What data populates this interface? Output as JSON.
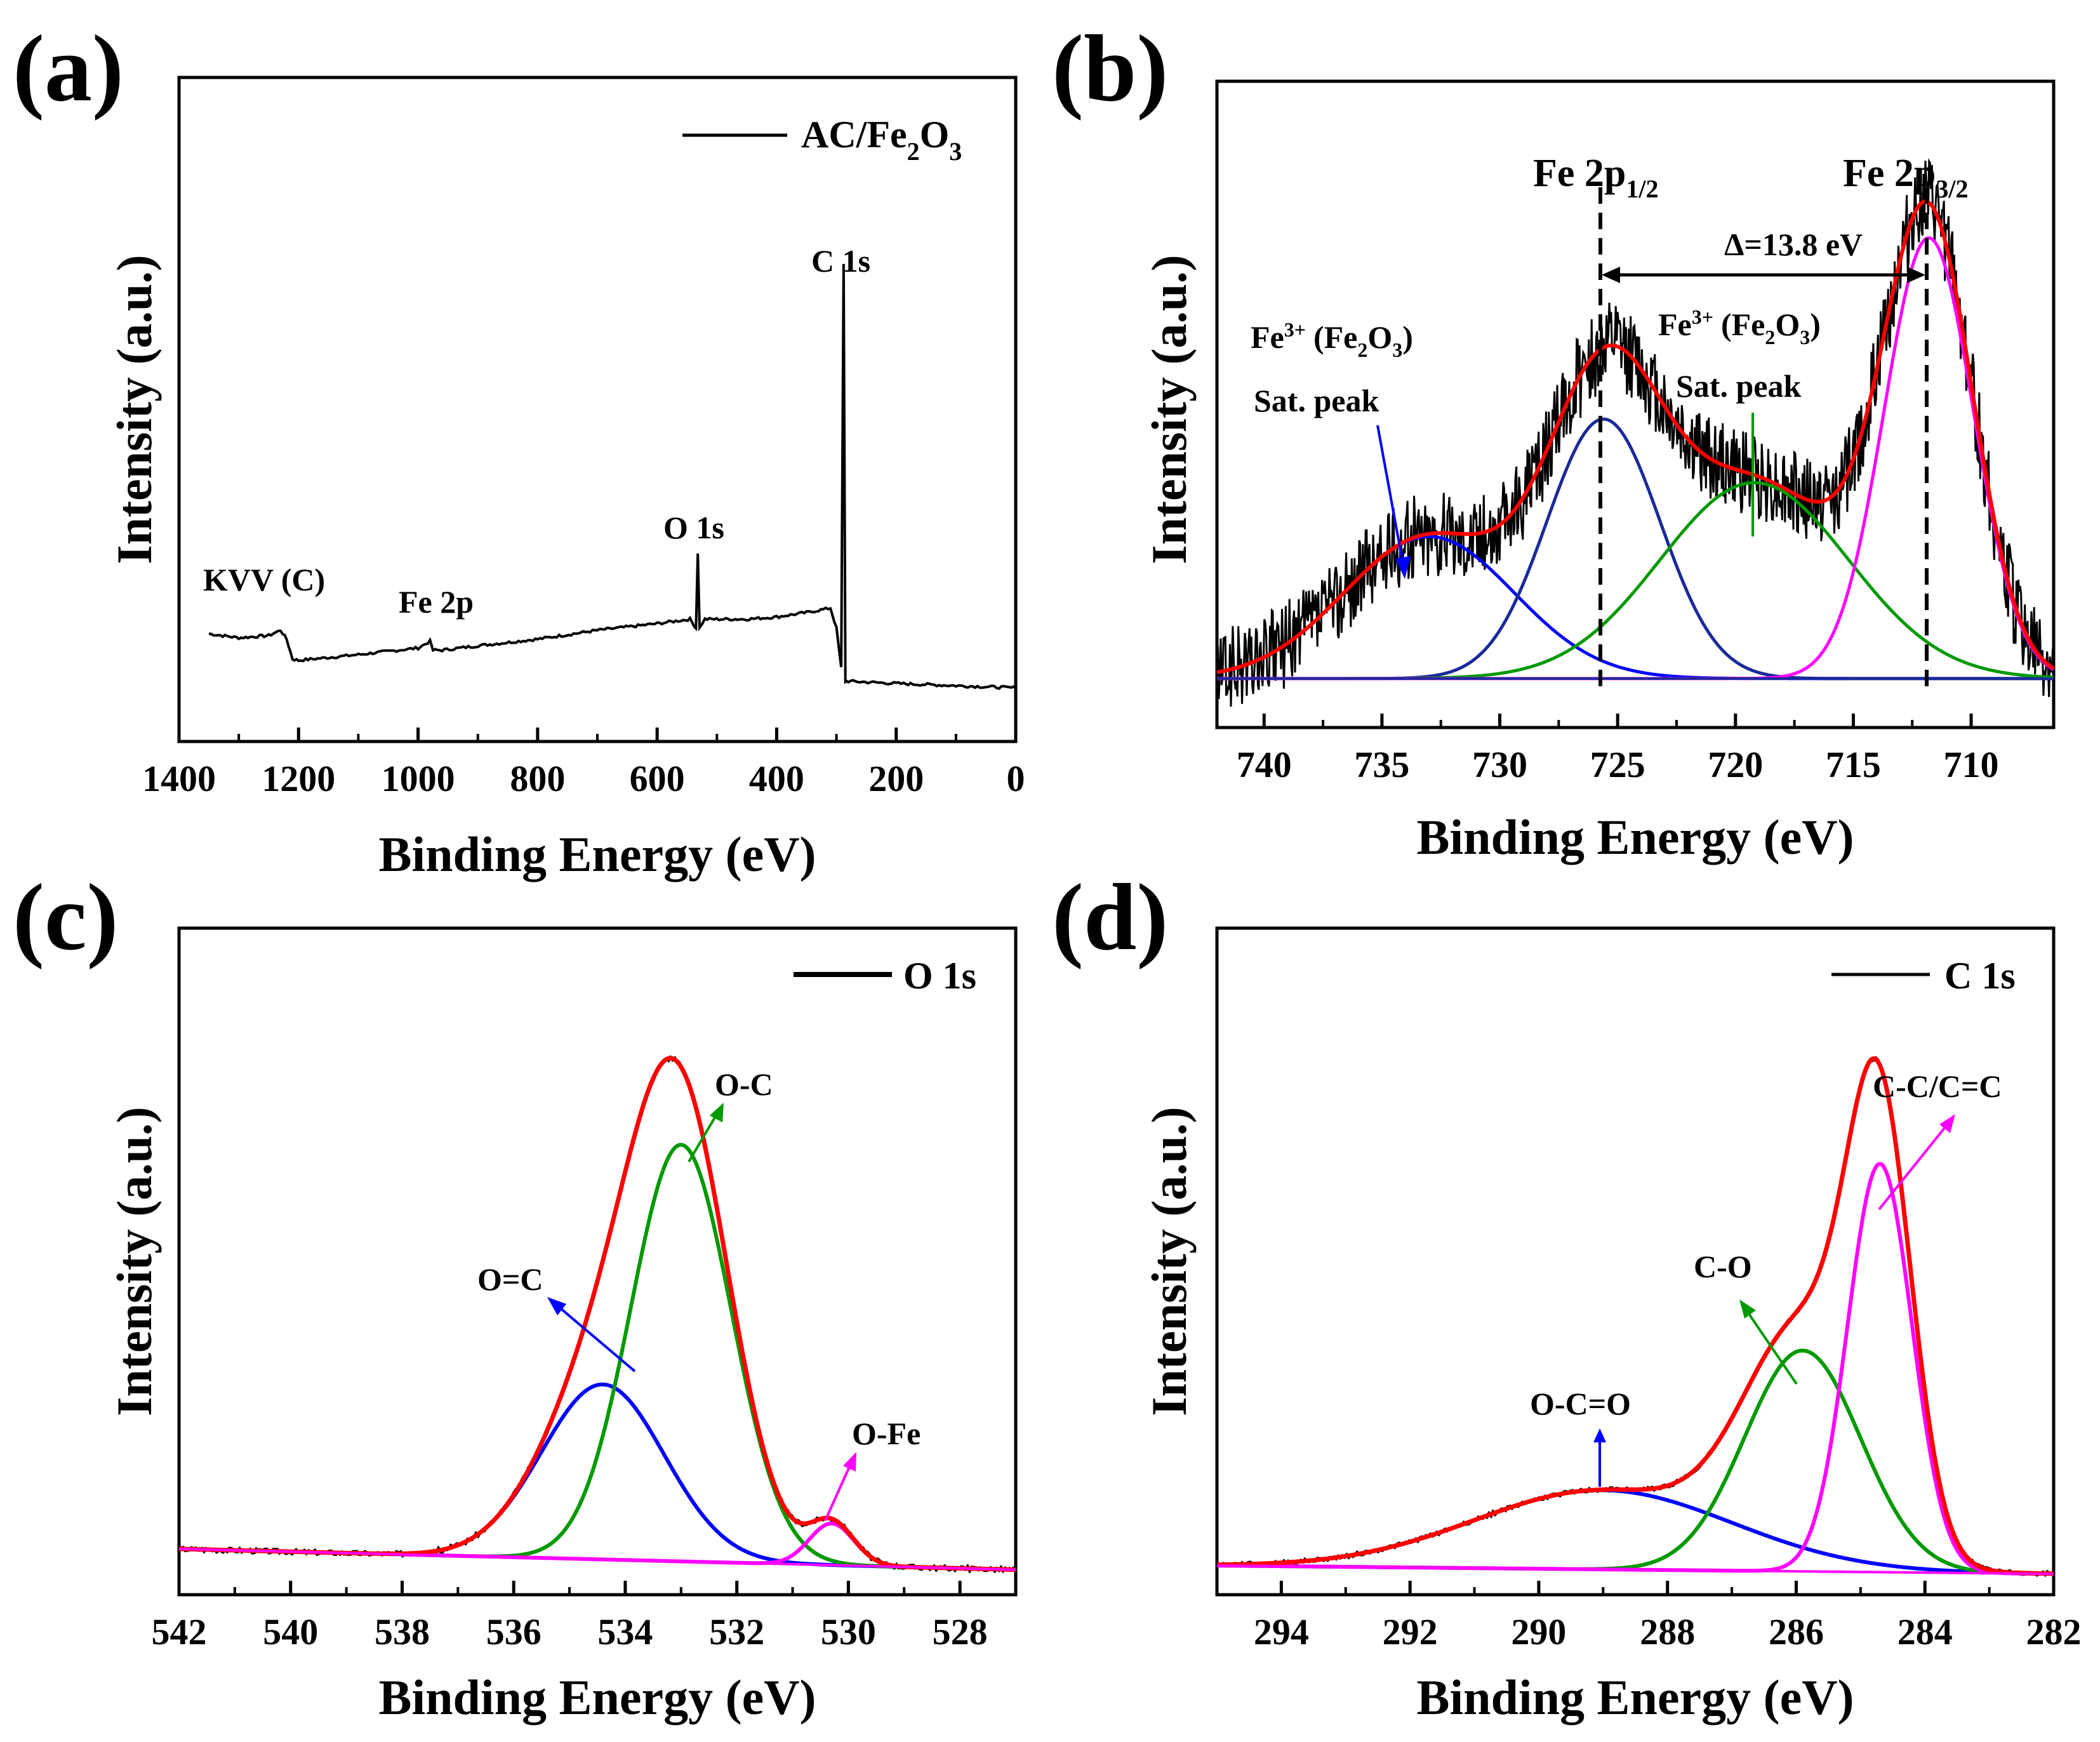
{
  "figure": {
    "panels": [
      {
        "label": "(a)",
        "xlabel": "Binding Energy (eV)",
        "ylabel": "Intensity (a.u.)",
        "legend": "AC/Fe2O3"
      },
      {
        "label": "(b)",
        "xlabel": "Binding Energy (eV)",
        "ylabel": "Intensity (a.u.)",
        "legend": ""
      },
      {
        "label": "(c)",
        "xlabel": "Binding Energy (eV)",
        "ylabel": "Intensity (a.u.)",
        "legend": "O 1s"
      },
      {
        "label": "(d)",
        "xlabel": "Binding Energy (eV)",
        "ylabel": "Intensity (a.u.)",
        "legend": "C 1s"
      }
    ]
  },
  "colors": {
    "raw": "#000000",
    "fit_envelope": "#ff0000",
    "blue": "#0000ff",
    "navy": "#1a2a9a",
    "green": "#009900",
    "magenta": "#ff00ff"
  },
  "chart_data": [
    {
      "panel": "(a)",
      "type": "line",
      "title": "",
      "xlabel": "Binding Energy (eV)",
      "ylabel": "Intensity (a.u.)",
      "xlim": [
        1400,
        0
      ],
      "xticks": [
        1400,
        1200,
        1000,
        800,
        600,
        400,
        200,
        0
      ],
      "ylim": [
        0,
        1
      ],
      "legend": "AC/Fe2O3",
      "series": [
        {
          "name": "AC/Fe2O3",
          "color": "#000000",
          "x": [
            1350,
            1300,
            1250,
            1230,
            1220,
            1210,
            1200,
            1100,
            1000,
            980,
            975,
            960,
            900,
            800,
            700,
            600,
            545,
            535,
            532,
            529,
            525,
            520,
            450,
            400,
            350,
            310,
            300,
            292,
            288,
            285,
            283,
            280,
            200,
            100,
            0
          ],
          "y": [
            0.167,
            0.158,
            0.163,
            0.175,
            0.155,
            0.11,
            0.107,
            0.12,
            0.135,
            0.15,
            0.13,
            0.13,
            0.14,
            0.155,
            0.175,
            0.19,
            0.2,
            0.18,
            0.35,
            0.18,
            0.19,
            0.2,
            0.2,
            0.205,
            0.215,
            0.225,
            0.18,
            0.09,
            1.0,
            0.06,
            0.06,
            0.06,
            0.055,
            0.05,
            0.045
          ]
        }
      ],
      "annotations": [
        {
          "text": "KVV (C)",
          "x": 1180
        },
        {
          "text": "Fe 2p",
          "x": 910
        },
        {
          "text": "O 1s",
          "x": 540
        },
        {
          "text": "C 1s",
          "x": 300
        }
      ]
    },
    {
      "panel": "(b)",
      "type": "line",
      "title": "",
      "xlabel": "Binding Energy (eV)",
      "ylabel": "Intensity (a.u.)",
      "xlim": [
        742,
        706.5
      ],
      "xticks": [
        740,
        735,
        730,
        725,
        720,
        715,
        710
      ],
      "ylim": [
        -0.1,
        1.22
      ],
      "baseline": 0.0,
      "series": [
        {
          "name": "raw",
          "color": "#000000",
          "noisy": true,
          "noise": 0.055
        },
        {
          "name": "Fe3+ (Fe2O3) Sat. peak",
          "color": "#0000ff",
          "center": 733,
          "height": 0.29,
          "width": 3.6
        },
        {
          "name": "Fe 2p1/2",
          "color": "#1a2a9a",
          "center": 725.6,
          "height": 0.53,
          "width": 2.4
        },
        {
          "name": "Fe3+ (Fe2O3) Sat. peak",
          "color": "#009900",
          "center": 719.2,
          "height": 0.4,
          "width": 4.0
        },
        {
          "name": "Fe 2p3/2",
          "color": "#ff00ff",
          "center": 711.8,
          "height": 0.9,
          "width": 1.9
        },
        {
          "name": "envelope",
          "color": "#ff0000",
          "sum_of_components": true
        }
      ],
      "dashed_lines": [
        725.5,
        711.7
      ],
      "delta_arrow": {
        "from": 725.5,
        "to": 711.7,
        "text": "Δ=13.8 eV"
      },
      "annotations": [
        {
          "text": "Fe 2p",
          "sub": "1/2"
        },
        {
          "text": "Fe 2p",
          "sub": "3/2"
        },
        {
          "text": "Fe",
          "sup": "3+",
          "rest": "(Fe2O3)",
          "label2": "Sat. peak",
          "side": "left"
        },
        {
          "text": "Fe",
          "sup": "3+",
          "rest": "(Fe2O3)",
          "label2": "Sat. peak",
          "side": "right"
        }
      ]
    },
    {
      "panel": "(c)",
      "type": "line",
      "title": "",
      "xlabel": "Binding Energy (eV)",
      "ylabel": "Intensity (a.u.)",
      "xlim": [
        542,
        527
      ],
      "xticks": [
        542,
        540,
        538,
        536,
        534,
        532,
        530,
        528
      ],
      "ylim": [
        -0.05,
        1.55
      ],
      "legend": "O 1s",
      "series": [
        {
          "name": "O=C",
          "color": "#0000ff",
          "center": 534.4,
          "height": 0.42,
          "width": 1.1
        },
        {
          "name": "O-C",
          "color": "#009900",
          "center": 533.0,
          "height": 1.0,
          "width": 0.9
        },
        {
          "name": "O-Fe",
          "color": "#ff00ff",
          "center": 530.3,
          "height": 0.1,
          "width": 0.4
        },
        {
          "name": "envelope",
          "color": "#ff0000",
          "sum_of_components": true
        },
        {
          "name": "raw",
          "color": "#000000",
          "noisy": true,
          "noise": 0.005
        }
      ],
      "annotations": [
        {
          "text": "O=C"
        },
        {
          "text": "O-C"
        },
        {
          "text": "O-Fe"
        }
      ]
    },
    {
      "panel": "(d)",
      "type": "line",
      "title": "",
      "xlabel": "Binding Energy (eV)",
      "ylabel": "Intensity (a.u.)",
      "xlim": [
        295,
        282
      ],
      "xticks": [
        294,
        292,
        290,
        288,
        286,
        284,
        282
      ],
      "ylim": [
        -0.05,
        1.55
      ],
      "legend": "C 1s",
      "series": [
        {
          "name": "O-C=O",
          "color": "#0000ff",
          "center": 289.0,
          "height": 0.19,
          "width": 2.0
        },
        {
          "name": "C-O",
          "color": "#009900",
          "center": 285.9,
          "height": 0.53,
          "width": 0.9
        },
        {
          "name": "C-C/C=C",
          "color": "#ff00ff",
          "center": 284.7,
          "height": 0.98,
          "width": 0.5
        },
        {
          "name": "envelope",
          "color": "#ff0000",
          "sum_of_components": true
        },
        {
          "name": "raw",
          "color": "#000000",
          "noisy": true,
          "noise": 0.004
        }
      ],
      "annotations": [
        {
          "text": "O-C=O"
        },
        {
          "text": "C-O"
        },
        {
          "text": "C-C/C=C"
        }
      ]
    }
  ],
  "annotation_text": {
    "a": {
      "kvv": "KVV (C)",
      "fe2p": "Fe 2p",
      "o1s": "O 1s",
      "c1s": "C 1s",
      "leg_main": "AC/Fe",
      "leg_sub1": "2",
      "leg_o": "O",
      "leg_sub2": "3"
    },
    "b": {
      "fe2p": "Fe 2p",
      "sub12": "1/2",
      "sub32": "3/2",
      "delta": "Δ=13.8 eV",
      "fe": "Fe",
      "sup3": "3+",
      "paren_open": "(Fe",
      "sub2": "2",
      "o": "O",
      "sub3": "3",
      "paren_close": ")",
      "sat": "Sat. peak"
    },
    "c": {
      "oc_double": "O=C",
      "oc": "O-C",
      "ofe": "O-Fe"
    },
    "d": {
      "oco": "O-C=O",
      "co": "C-O",
      "cc": "C-C/C=C"
    }
  }
}
